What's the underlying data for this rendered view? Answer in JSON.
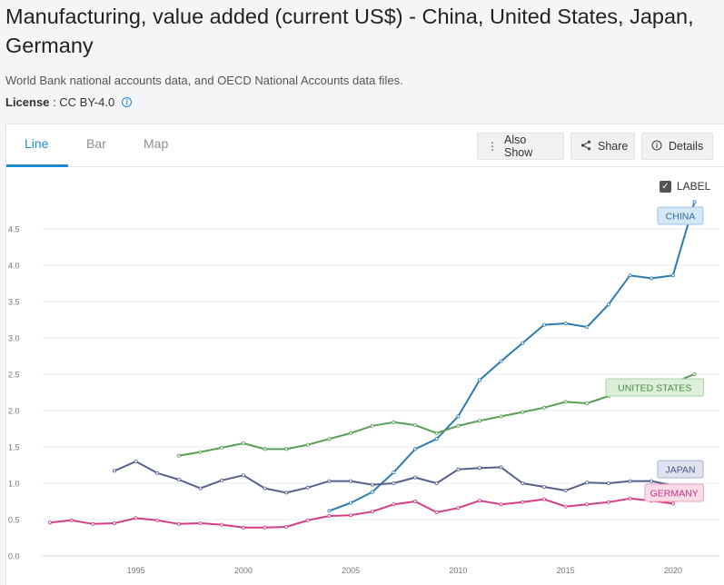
{
  "page": {
    "title": "Manufacturing, value added (current US$) - China, United States, Japan, Germany",
    "source": "World Bank national accounts data, and OECD National Accounts data files.",
    "license_label": "License",
    "license_sep": " : ",
    "license_value": "CC BY-4.0",
    "info_icon": "info-circle-icon"
  },
  "tabs": [
    {
      "label": "Line",
      "active": true
    },
    {
      "label": "Bar",
      "active": false
    },
    {
      "label": "Map",
      "active": false
    }
  ],
  "buttons": {
    "also_show": "Also Show",
    "share": "Share",
    "details": "Details"
  },
  "icons": {
    "also_show": "vertical-dots-icon",
    "share": "share-icon",
    "details": "info-circle-icon",
    "checkbox": "checkbox-checked-icon"
  },
  "label_toggle": {
    "label": "LABEL",
    "checked": true
  },
  "chart_data": {
    "type": "line",
    "title": "Manufacturing, value added (current US$)",
    "xlabel": "",
    "ylabel": "",
    "xlim": [
      1990.5,
      2021.7
    ],
    "ylim": [
      0,
      5
    ],
    "y_ticks": [
      "0.0",
      "0.5",
      "1.0",
      "1.5",
      "2.0",
      "2.5",
      "3.0",
      "3.5",
      "4.0",
      "4.5"
    ],
    "y_tick_values": [
      0,
      0.5,
      1.0,
      1.5,
      2.0,
      2.5,
      3.0,
      3.5,
      4.0,
      4.5
    ],
    "x_ticks": [
      "1995",
      "2000",
      "2005",
      "2010",
      "2015",
      "2020"
    ],
    "x_tick_values": [
      1995,
      2000,
      2005,
      2010,
      2015,
      2020
    ],
    "grid": true,
    "series": [
      {
        "name": "CHINA",
        "color": "#2e7bb0",
        "label_bg": "#d5e6f4",
        "label_border": "#9fc3e2",
        "label_text": "#2e6fa3",
        "x": [
          2004,
          2005,
          2006,
          2007,
          2008,
          2009,
          2010,
          2011,
          2012,
          2013,
          2014,
          2015,
          2016,
          2017,
          2018,
          2019,
          2020,
          2021
        ],
        "values": [
          0.62,
          0.73,
          0.88,
          1.15,
          1.47,
          1.61,
          1.92,
          2.42,
          2.68,
          2.93,
          3.18,
          3.2,
          3.15,
          3.46,
          3.86,
          3.82,
          3.86,
          4.87
        ]
      },
      {
        "name": "UNITED STATES",
        "color": "#5a9e55",
        "label_bg": "#dcefd8",
        "label_border": "#a9d3a3",
        "label_text": "#4b8d46",
        "x": [
          1997,
          1998,
          1999,
          2000,
          2001,
          2002,
          2003,
          2004,
          2005,
          2006,
          2007,
          2008,
          2009,
          2010,
          2011,
          2012,
          2013,
          2014,
          2015,
          2016,
          2017,
          2018,
          2019,
          2020,
          2021
        ],
        "values": [
          1.38,
          1.43,
          1.49,
          1.55,
          1.47,
          1.47,
          1.53,
          1.61,
          1.69,
          1.79,
          1.84,
          1.8,
          1.69,
          1.79,
          1.86,
          1.92,
          1.98,
          2.04,
          2.12,
          2.1,
          2.2,
          2.3,
          2.35,
          2.38,
          2.5
        ]
      },
      {
        "name": "JAPAN",
        "color": "#56608c",
        "label_bg": "#dfe3f0",
        "label_border": "#aab2d0",
        "label_text": "#4a5488",
        "x": [
          1994,
          1995,
          1996,
          1997,
          1998,
          1999,
          2000,
          2001,
          2002,
          2003,
          2004,
          2005,
          2006,
          2007,
          2008,
          2009,
          2010,
          2011,
          2012,
          2013,
          2014,
          2015,
          2016,
          2017,
          2018,
          2019,
          2020
        ],
        "values": [
          1.17,
          1.3,
          1.14,
          1.05,
          0.93,
          1.04,
          1.11,
          0.93,
          0.87,
          0.94,
          1.03,
          1.03,
          0.98,
          1.0,
          1.08,
          1.0,
          1.19,
          1.21,
          1.22,
          1.0,
          0.95,
          0.9,
          1.01,
          1.0,
          1.03,
          1.03,
          0.97
        ]
      },
      {
        "name": "GERMANY",
        "color": "#d43d86",
        "label_bg": "#f9dbea",
        "label_border": "#eba1c6",
        "label_text": "#c63479",
        "x": [
          1991,
          1992,
          1993,
          1994,
          1995,
          1996,
          1997,
          1998,
          1999,
          2000,
          2001,
          2002,
          2003,
          2004,
          2005,
          2006,
          2007,
          2008,
          2009,
          2010,
          2011,
          2012,
          2013,
          2014,
          2015,
          2016,
          2017,
          2018,
          2019,
          2020
        ],
        "values": [
          0.46,
          0.49,
          0.44,
          0.45,
          0.52,
          0.49,
          0.44,
          0.45,
          0.43,
          0.39,
          0.39,
          0.4,
          0.49,
          0.55,
          0.56,
          0.61,
          0.71,
          0.75,
          0.6,
          0.66,
          0.76,
          0.71,
          0.74,
          0.78,
          0.68,
          0.71,
          0.74,
          0.79,
          0.76,
          0.72
        ]
      }
    ]
  }
}
